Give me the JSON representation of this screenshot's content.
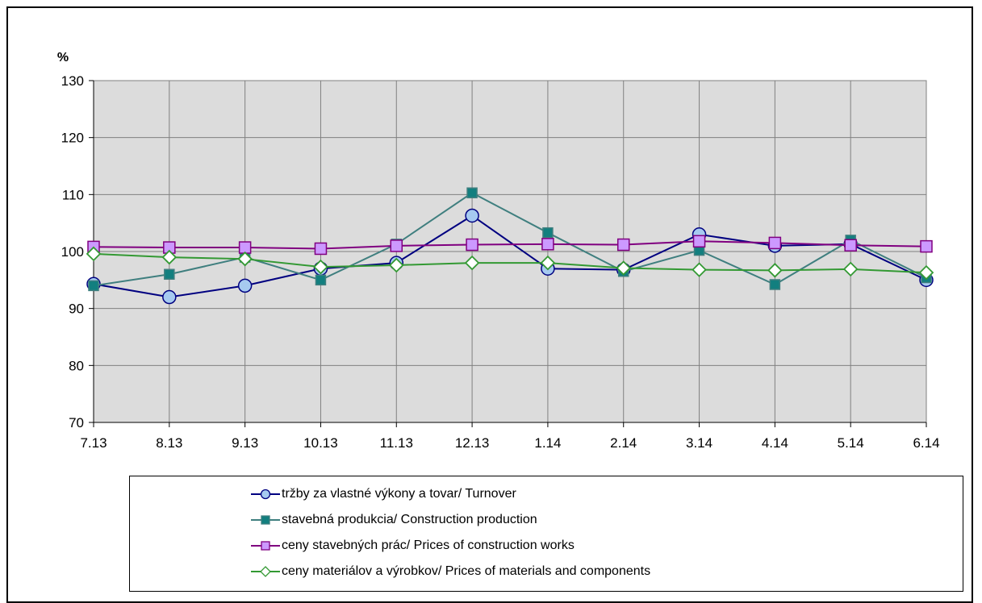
{
  "chart_data": {
    "type": "line",
    "ylabel": "%",
    "ylim": [
      70,
      130
    ],
    "yticks": [
      "70",
      "80",
      "90",
      "100",
      "110",
      "120",
      "130"
    ],
    "categories": [
      "7.13",
      "8.13",
      "9.13",
      "10.13",
      "11.13",
      "12.13",
      "1.14",
      "2.14",
      "3.14",
      "4.14",
      "5.14",
      "6.14"
    ],
    "grid": true,
    "legend_position": "bottom",
    "series": [
      {
        "name": "tržby za vlastné výkony a tovar/ Turnover",
        "color": "#000080",
        "marker": "circle",
        "marker_fill": "#a6caf0",
        "values": [
          94.3,
          92.0,
          94.0,
          97.0,
          98.0,
          106.3,
          97.0,
          96.8,
          103.0,
          101.0,
          101.3,
          95.0
        ]
      },
      {
        "name": "stavebná produkcia/ Construction production",
        "color": "#3f7f7f",
        "marker": "square",
        "marker_fill": "#127f7f",
        "values": [
          94.0,
          96.0,
          99.0,
          95.0,
          101.3,
          110.3,
          103.3,
          96.5,
          100.2,
          94.2,
          102.0,
          95.4
        ]
      },
      {
        "name": "ceny stavebných prác/ Prices of construction works",
        "color": "#800080",
        "marker": "square",
        "marker_fill": "#cc99ff",
        "values": [
          100.8,
          100.7,
          100.7,
          100.5,
          101.0,
          101.2,
          101.3,
          101.2,
          101.8,
          101.5,
          101.1,
          100.9
        ]
      },
      {
        "name": "ceny materiálov a výrobkov/ Prices of materials and components",
        "color": "#339933",
        "marker": "diamond",
        "marker_fill": "#ffffff",
        "values": [
          99.6,
          99.0,
          98.7,
          97.3,
          97.6,
          98.0,
          98.0,
          97.1,
          96.8,
          96.7,
          96.9,
          96.3
        ]
      }
    ]
  }
}
